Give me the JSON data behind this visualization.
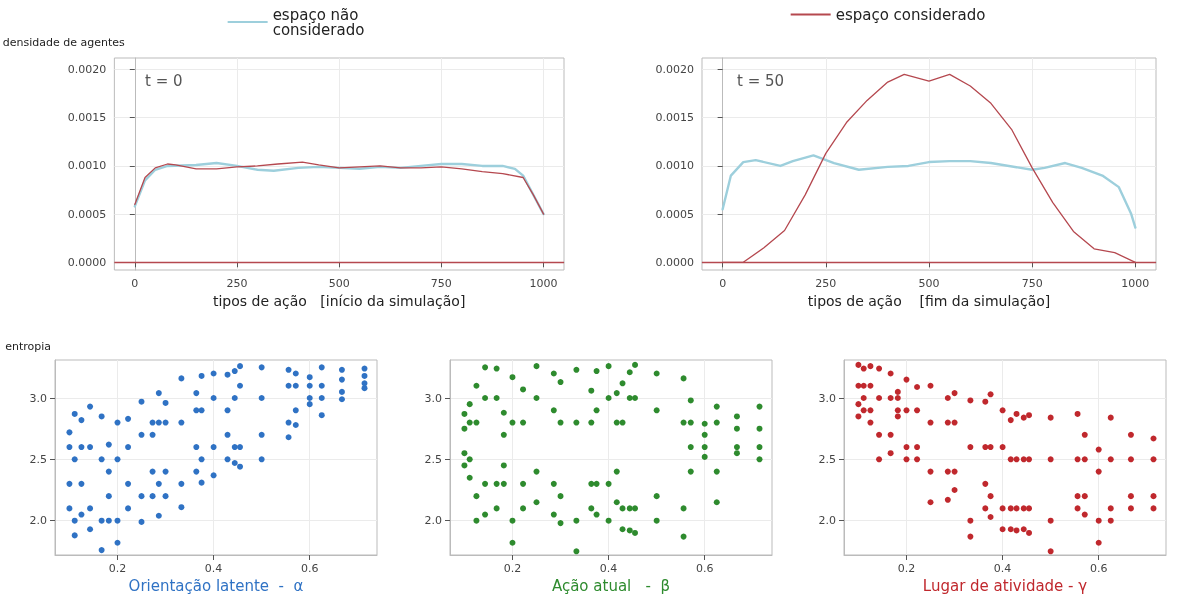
{
  "chart_data": [
    {
      "type": "line",
      "ylabel": "densidade de agentes",
      "xlabel": "tipos de ação   [início da simulação]",
      "annotations": [
        "t = 0"
      ],
      "legend": "top",
      "grid": true,
      "marker": "none",
      "line_style": "solid",
      "xlim": [
        -50,
        1050
      ],
      "xticks": [
        0,
        250,
        500,
        750,
        1000
      ],
      "ylim": [
        -8e-05,
        0.00212
      ],
      "yticks": [
        {
          "value": 0,
          "label": "0.0000"
        },
        {
          "value": 0.0005,
          "label": "0.0005"
        },
        {
          "value": 0.001,
          "label": "0.0010"
        },
        {
          "value": 0.0015,
          "label": "0.0015"
        },
        {
          "value": 0.002,
          "label": "0.0020"
        }
      ],
      "series": [
        {
          "name": "espaço não considerado",
          "color": "#9dcfdc",
          "x": [
            0,
            25,
            50,
            80,
            150,
            200,
            250,
            300,
            340,
            400,
            450,
            500,
            550,
            600,
            650,
            700,
            750,
            800,
            850,
            900,
            930,
            950,
            975,
            1000
          ],
          "values": [
            0.00058,
            0.00085,
            0.00096,
            0.001,
            0.00101,
            0.00103,
            0.001,
            0.00096,
            0.00095,
            0.00098,
            0.00099,
            0.00098,
            0.00097,
            0.00099,
            0.00098,
            0.001,
            0.00102,
            0.00102,
            0.001,
            0.001,
            0.00097,
            0.0009,
            0.0007,
            0.0005
          ]
        },
        {
          "color": "#b5484f",
          "x": [
            0,
            25,
            50,
            80,
            100,
            150,
            200,
            250,
            300,
            350,
            410,
            450,
            500,
            550,
            600,
            650,
            700,
            750,
            800,
            850,
            900,
            950,
            975,
            1000
          ],
          "values": [
            0.0006,
            0.00088,
            0.00098,
            0.00102,
            0.00101,
            0.00097,
            0.00097,
            0.00099,
            0.001,
            0.00102,
            0.00104,
            0.00101,
            0.00098,
            0.00099,
            0.001,
            0.00098,
            0.00098,
            0.00099,
            0.00097,
            0.00094,
            0.00092,
            0.00088,
            0.0007,
            0.0005
          ]
        }
      ],
      "ref_lines": [
        {
          "axis": "y",
          "value": 0,
          "color": "#b5484f"
        }
      ]
    },
    {
      "type": "line",
      "xlabel": "tipos de ação    [fim da simulação]",
      "annotations": [
        "t = 50"
      ],
      "legend": "top",
      "grid": true,
      "marker": "none",
      "line_style": "solid",
      "xlim": [
        -50,
        1050
      ],
      "xticks": [
        0,
        250,
        500,
        750,
        1000
      ],
      "ylim": [
        -8e-05,
        0.00212
      ],
      "yticks": [
        {
          "value": 0,
          "label": "0.0000"
        },
        {
          "value": 0.0005,
          "label": "0.0005"
        },
        {
          "value": 0.001,
          "label": "0.0010"
        },
        {
          "value": 0.0015,
          "label": "0.0015"
        },
        {
          "value": 0.002,
          "label": "0.0020"
        }
      ],
      "series": [
        {
          "color": "#9dcfdc",
          "x": [
            0,
            20,
            50,
            80,
            140,
            170,
            220,
            270,
            330,
            400,
            450,
            500,
            550,
            600,
            650,
            750,
            780,
            830,
            870,
            920,
            960,
            990,
            1000
          ],
          "values": [
            0.00055,
            0.0009,
            0.00104,
            0.00106,
            0.001,
            0.00105,
            0.00111,
            0.00103,
            0.00096,
            0.00099,
            0.001,
            0.00104,
            0.00105,
            0.00105,
            0.00103,
            0.00096,
            0.00098,
            0.00103,
            0.00098,
            0.0009,
            0.00078,
            0.0005,
            0.00036
          ]
        },
        {
          "name": "espaço considerado",
          "color": "#b5484f",
          "x": [
            0,
            50,
            100,
            150,
            200,
            250,
            300,
            350,
            400,
            440,
            500,
            550,
            600,
            650,
            700,
            750,
            800,
            850,
            900,
            950,
            1000
          ],
          "values": [
            0,
            0,
            0.00015,
            0.00033,
            0.0007,
            0.00113,
            0.00145,
            0.00168,
            0.00187,
            0.00195,
            0.00188,
            0.00195,
            0.00183,
            0.00165,
            0.00138,
            0.00098,
            0.00062,
            0.00032,
            0.00014,
            0.0001,
            0
          ]
        }
      ],
      "ref_lines": [
        {
          "axis": "y",
          "value": 0,
          "color": "#b5484f"
        }
      ]
    },
    {
      "type": "scatter",
      "ylabel": "entropia",
      "xlabel": "Orientação latente  -  α",
      "grid": true,
      "marker": "circle",
      "xlim": [
        0.07,
        0.74
      ],
      "xticks": [
        0.2,
        0.4,
        0.6
      ],
      "ylim": [
        1.72,
        3.31
      ],
      "yticks": [
        {
          "value": 2,
          "label": "2.0"
        },
        {
          "value": 2.5,
          "label": "2.5"
        },
        {
          "value": 3,
          "label": "3.0"
        }
      ],
      "series": [
        {
          "color": "#2f72c4",
          "x": [
            0.1,
            0.1,
            0.1,
            0.1,
            0.111,
            0.111,
            0.111,
            0.111,
            0.125,
            0.125,
            0.125,
            0.125,
            0.143,
            0.143,
            0.143,
            0.143,
            0.167,
            0.167,
            0.167,
            0.167,
            0.182,
            0.182,
            0.182,
            0.182,
            0.2,
            0.2,
            0.2,
            0.2,
            0.222,
            0.222,
            0.222,
            0.222,
            0.25,
            0.25,
            0.25,
            0.25,
            0.273,
            0.273,
            0.273,
            0.273,
            0.286,
            0.286,
            0.286,
            0.286,
            0.3,
            0.3,
            0.3,
            0.3,
            0.333,
            0.333,
            0.333,
            0.333,
            0.364,
            0.364,
            0.364,
            0.364,
            0.375,
            0.375,
            0.375,
            0.375,
            0.4,
            0.4,
            0.4,
            0.4,
            0.429,
            0.429,
            0.429,
            0.429,
            0.444,
            0.444,
            0.444,
            0.444,
            0.455,
            0.455,
            0.455,
            0.455,
            0.5,
            0.5,
            0.5,
            0.5,
            0.556,
            0.556,
            0.556,
            0.556,
            0.571,
            0.571,
            0.571,
            0.571,
            0.6,
            0.6,
            0.6,
            0.6,
            0.625,
            0.625,
            0.625,
            0.625,
            0.667,
            0.667,
            0.667,
            0.667,
            0.714,
            0.714,
            0.714,
            0.714
          ],
          "values": [
            2.1,
            2.3,
            2.6,
            2.72,
            1.88,
            2.0,
            2.5,
            2.87,
            2.05,
            2.3,
            2.6,
            2.82,
            1.93,
            2.1,
            2.6,
            2.93,
            1.76,
            2.0,
            2.5,
            2.85,
            2.0,
            2.2,
            2.4,
            2.62,
            1.82,
            2.0,
            2.5,
            2.8,
            2.1,
            2.3,
            2.6,
            2.83,
            1.99,
            2.2,
            2.7,
            2.97,
            2.2,
            2.4,
            2.7,
            2.8,
            2.04,
            2.3,
            2.8,
            3.04,
            2.2,
            2.4,
            2.8,
            2.96,
            2.11,
            2.3,
            2.8,
            3.16,
            2.4,
            2.6,
            2.9,
            3.04,
            2.31,
            2.5,
            2.9,
            3.18,
            2.37,
            2.6,
            3.0,
            3.2,
            2.5,
            2.7,
            2.9,
            3.19,
            2.47,
            2.6,
            3.0,
            3.22,
            2.44,
            2.6,
            3.1,
            3.26,
            2.5,
            2.7,
            3.0,
            3.25,
            2.68,
            2.8,
            3.1,
            3.23,
            2.78,
            2.9,
            3.1,
            3.2,
            2.95,
            3.0,
            3.1,
            3.17,
            2.86,
            3.0,
            3.1,
            3.25,
            2.99,
            3.05,
            3.15,
            3.23,
            3.08,
            3.12,
            3.18,
            3.24
          ]
        }
      ]
    },
    {
      "type": "scatter",
      "xlabel": "Ação atual   -  β",
      "grid": true,
      "marker": "circle",
      "xlim": [
        0.07,
        0.74
      ],
      "xticks": [
        0.2,
        0.4,
        0.6
      ],
      "ylim": [
        1.72,
        3.31
      ],
      "yticks": [
        {
          "value": 2,
          "label": "2.0"
        },
        {
          "value": 2.5,
          "label": "2.5"
        },
        {
          "value": 3,
          "label": "3.0"
        }
      ],
      "series": [
        {
          "color": "#2e8b2e",
          "x": [
            0.1,
            0.1,
            0.1,
            0.1,
            0.111,
            0.111,
            0.111,
            0.111,
            0.125,
            0.125,
            0.125,
            0.125,
            0.143,
            0.143,
            0.143,
            0.143,
            0.167,
            0.167,
            0.167,
            0.167,
            0.182,
            0.182,
            0.182,
            0.182,
            0.2,
            0.2,
            0.2,
            0.2,
            0.222,
            0.222,
            0.222,
            0.222,
            0.25,
            0.25,
            0.25,
            0.25,
            0.286,
            0.286,
            0.286,
            0.286,
            0.3,
            0.3,
            0.3,
            0.3,
            0.333,
            0.333,
            0.333,
            0.333,
            0.364,
            0.364,
            0.364,
            0.364,
            0.375,
            0.375,
            0.375,
            0.375,
            0.4,
            0.4,
            0.4,
            0.4,
            0.417,
            0.417,
            0.417,
            0.417,
            0.429,
            0.429,
            0.429,
            0.429,
            0.444,
            0.444,
            0.444,
            0.444,
            0.455,
            0.455,
            0.455,
            0.455,
            0.5,
            0.5,
            0.5,
            0.5,
            0.556,
            0.556,
            0.556,
            0.556,
            0.571,
            0.571,
            0.571,
            0.571,
            0.6,
            0.6,
            0.6,
            0.6,
            0.625,
            0.625,
            0.625,
            0.625,
            0.667,
            0.667,
            0.667,
            0.667,
            0.714,
            0.714,
            0.714,
            0.714
          ],
          "values": [
            2.45,
            2.55,
            2.75,
            2.87,
            2.35,
            2.5,
            2.8,
            2.95,
            2.0,
            2.2,
            2.8,
            3.1,
            2.05,
            2.3,
            3.0,
            3.25,
            2.1,
            2.3,
            3.0,
            3.24,
            2.3,
            2.45,
            2.7,
            2.88,
            1.82,
            2.0,
            2.8,
            3.17,
            2.1,
            2.3,
            2.8,
            3.07,
            2.15,
            2.4,
            3.0,
            3.26,
            2.05,
            2.3,
            2.9,
            3.2,
            1.98,
            2.2,
            2.8,
            3.13,
            1.75,
            2.0,
            2.8,
            3.23,
            2.1,
            2.3,
            2.8,
            3.06,
            2.05,
            2.3,
            2.9,
            3.22,
            2.0,
            2.3,
            3.0,
            3.26,
            2.15,
            2.4,
            2.8,
            3.04,
            1.93,
            2.1,
            2.8,
            3.12,
            1.92,
            2.1,
            3.0,
            3.21,
            1.9,
            2.1,
            3.0,
            3.27,
            2.0,
            2.2,
            2.9,
            3.2,
            1.87,
            2.1,
            2.8,
            3.16,
            2.4,
            2.6,
            2.8,
            2.98,
            2.52,
            2.6,
            2.7,
            2.79,
            2.15,
            2.4,
            2.8,
            2.93,
            2.55,
            2.6,
            2.75,
            2.85,
            2.5,
            2.6,
            2.75,
            2.93
          ]
        }
      ]
    },
    {
      "type": "scatter",
      "xlabel": "Lugar de atividade - γ",
      "grid": true,
      "marker": "circle",
      "xlim": [
        0.07,
        0.74
      ],
      "xticks": [
        0.2,
        0.4,
        0.6
      ],
      "ylim": [
        1.72,
        3.31
      ],
      "yticks": [
        {
          "value": 2,
          "label": "2.0"
        },
        {
          "value": 2.5,
          "label": "2.5"
        },
        {
          "value": 3,
          "label": "3.0"
        }
      ],
      "series": [
        {
          "color": "#c0282d",
          "x": [
            0.1,
            0.1,
            0.1,
            0.1,
            0.111,
            0.111,
            0.111,
            0.111,
            0.125,
            0.125,
            0.125,
            0.125,
            0.143,
            0.143,
            0.143,
            0.143,
            0.167,
            0.167,
            0.167,
            0.167,
            0.182,
            0.182,
            0.182,
            0.182,
            0.2,
            0.2,
            0.2,
            0.2,
            0.222,
            0.222,
            0.222,
            0.222,
            0.25,
            0.25,
            0.25,
            0.25,
            0.286,
            0.286,
            0.286,
            0.286,
            0.3,
            0.3,
            0.3,
            0.3,
            0.333,
            0.333,
            0.333,
            0.333,
            0.364,
            0.364,
            0.364,
            0.364,
            0.375,
            0.375,
            0.375,
            0.375,
            0.4,
            0.4,
            0.4,
            0.4,
            0.417,
            0.417,
            0.417,
            0.417,
            0.429,
            0.429,
            0.429,
            0.429,
            0.444,
            0.444,
            0.444,
            0.444,
            0.455,
            0.455,
            0.455,
            0.455,
            0.5,
            0.5,
            0.5,
            0.5,
            0.556,
            0.556,
            0.556,
            0.556,
            0.571,
            0.571,
            0.571,
            0.571,
            0.6,
            0.6,
            0.6,
            0.6,
            0.625,
            0.625,
            0.625,
            0.625,
            0.667,
            0.667,
            0.667,
            0.667,
            0.714,
            0.714,
            0.714,
            0.714
          ],
          "values": [
            2.85,
            2.95,
            3.1,
            3.27,
            2.9,
            3.0,
            3.1,
            3.24,
            2.8,
            2.9,
            3.1,
            3.26,
            2.5,
            2.7,
            3.0,
            3.24,
            2.55,
            2.7,
            3.0,
            3.2,
            2.85,
            2.9,
            3.0,
            3.05,
            2.5,
            2.6,
            2.9,
            3.15,
            2.5,
            2.6,
            2.9,
            3.09,
            2.15,
            2.4,
            2.8,
            3.1,
            2.17,
            2.4,
            2.8,
            3.0,
            2.25,
            2.4,
            2.8,
            3.04,
            1.87,
            2.0,
            2.6,
            2.98,
            2.1,
            2.3,
            2.6,
            2.97,
            2.03,
            2.2,
            2.6,
            3.03,
            1.93,
            2.1,
            2.6,
            2.9,
            1.93,
            2.1,
            2.5,
            2.82,
            1.92,
            2.1,
            2.5,
            2.87,
            1.93,
            2.1,
            2.5,
            2.84,
            1.9,
            2.1,
            2.5,
            2.86,
            1.75,
            2.0,
            2.5,
            2.84,
            2.1,
            2.2,
            2.5,
            2.87,
            2.05,
            2.2,
            2.5,
            2.7,
            1.82,
            2.0,
            2.4,
            2.58,
            2.0,
            2.1,
            2.5,
            2.84,
            2.1,
            2.2,
            2.5,
            2.7,
            2.1,
            2.2,
            2.5,
            2.67
          ]
        }
      ]
    }
  ]
}
